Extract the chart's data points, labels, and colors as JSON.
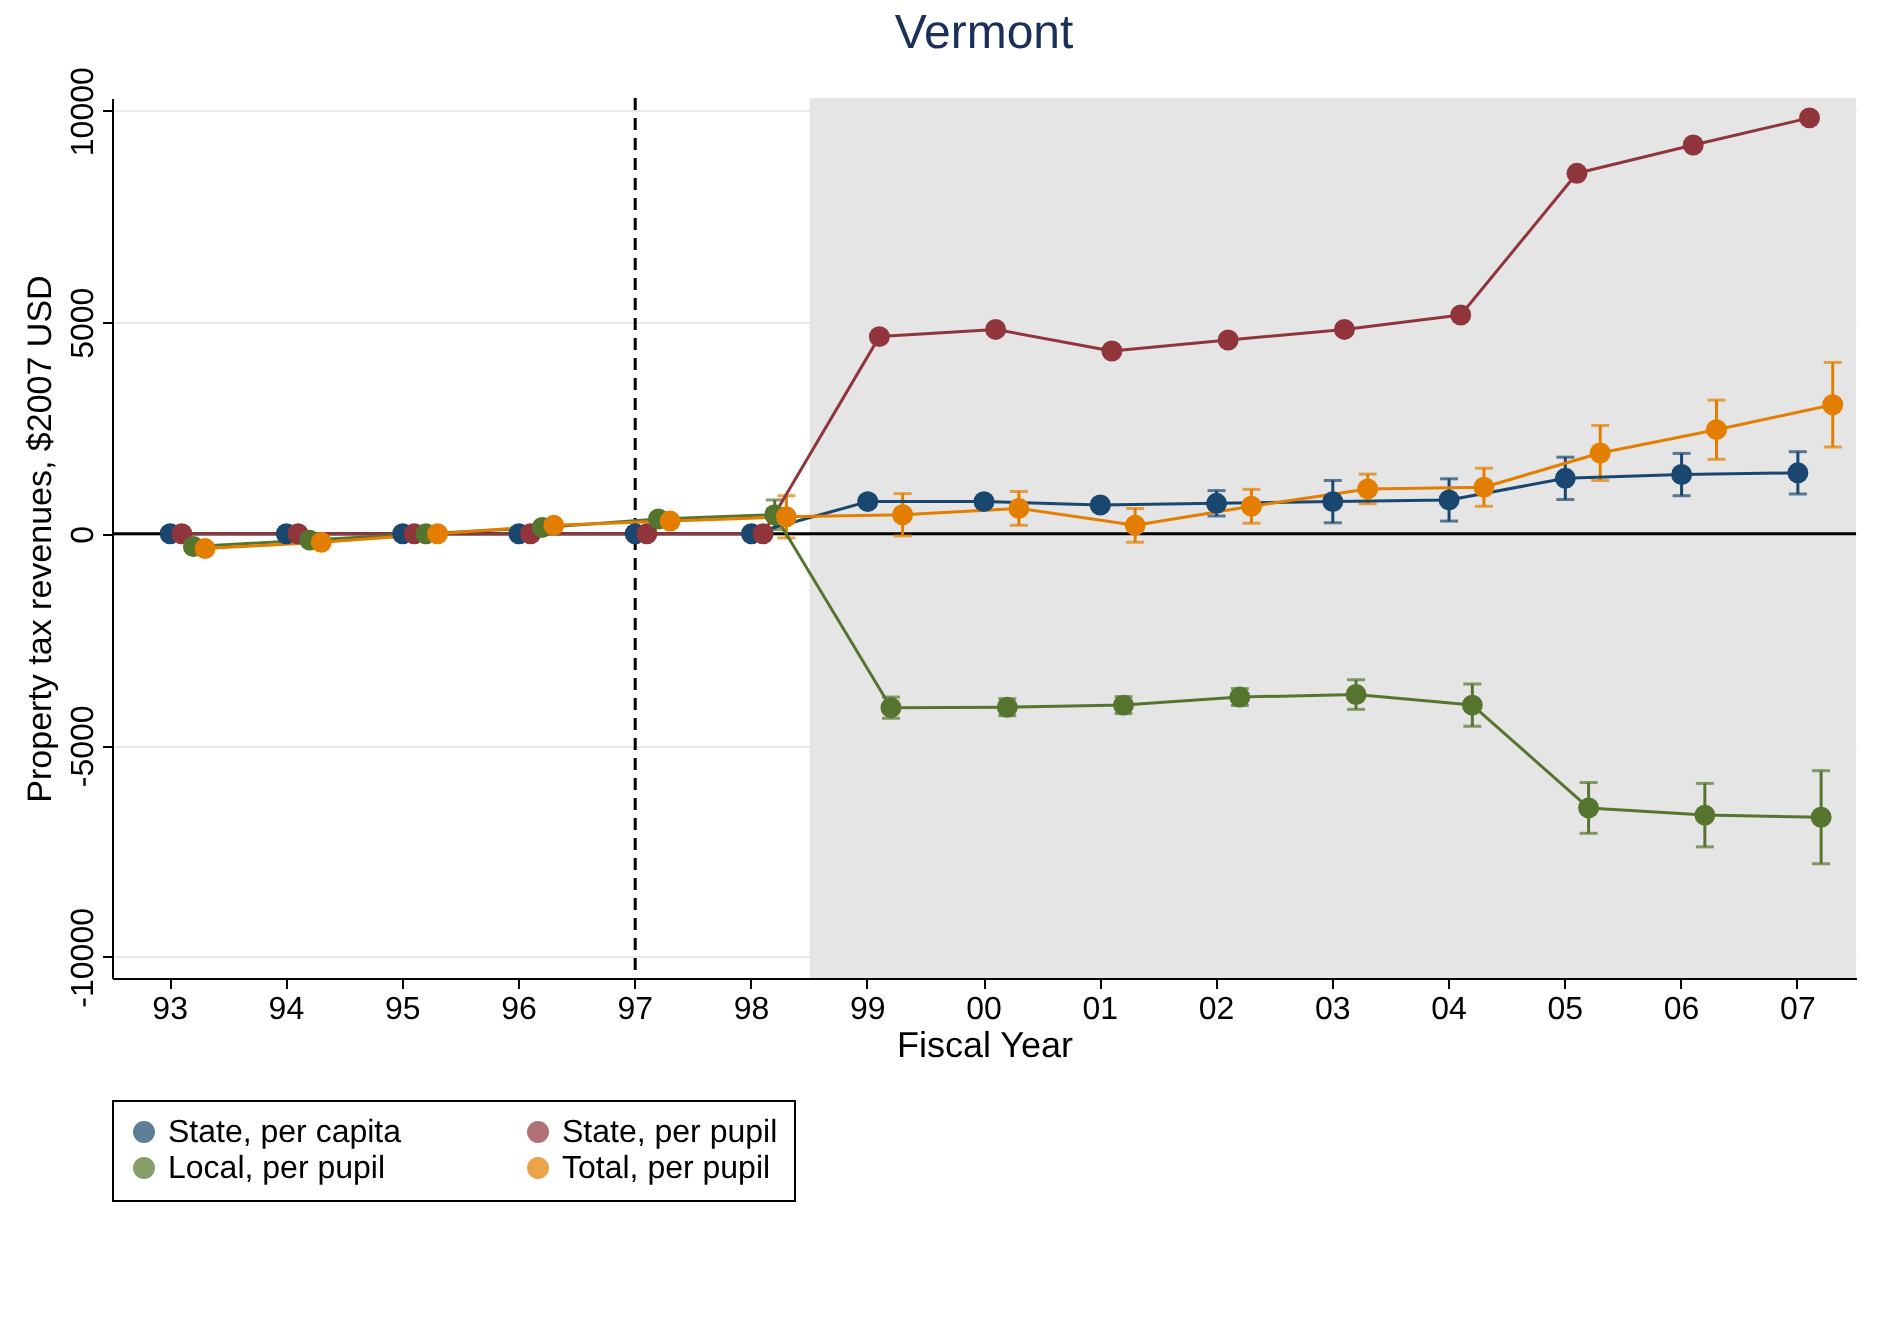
{
  "chart_data": {
    "type": "line",
    "title": "Vermont",
    "xlabel": "Fiscal Year",
    "ylabel": "Property tax revenues, $2007 USD",
    "categories": [
      "93",
      "94",
      "95",
      "96",
      "97",
      "98",
      "99",
      "00",
      "01",
      "02",
      "03",
      "04",
      "05",
      "06",
      "07"
    ],
    "ylim": [
      -10500,
      10300
    ],
    "yticks": [
      -10000,
      -5000,
      0,
      5000,
      10000
    ],
    "grid": "y",
    "legend": "bottom",
    "marker": "circle",
    "line_style": "solid",
    "series": [
      {
        "name": "State, per capita",
        "color": "#1a476f",
        "values": [
          0,
          0,
          0,
          0,
          0,
          0,
          760,
          760,
          680,
          720,
          760,
          800,
          1310,
          1400,
          1440
        ],
        "errors": [
          null,
          null,
          null,
          null,
          null,
          null,
          100,
          100,
          100,
          300,
          500,
          500,
          500,
          500,
          500
        ]
      },
      {
        "name": "State, per pupil",
        "color": "#90353b",
        "values": [
          0,
          0,
          0,
          0,
          0,
          0,
          4660,
          4830,
          4320,
          4580,
          4830,
          5170,
          8520,
          9190,
          9830
        ]
      },
      {
        "name": "Local, per pupil",
        "color": "#55752f",
        "values": [
          -300,
          -150,
          0,
          150,
          350,
          450,
          -4110,
          -4100,
          -4050,
          -3860,
          -3800,
          -4050,
          -6480,
          -6650,
          -6700
        ],
        "errors": [
          null,
          null,
          null,
          null,
          null,
          350,
          250,
          200,
          200,
          200,
          350,
          500,
          600,
          750,
          1100
        ]
      },
      {
        "name": "Total, per pupil",
        "color": "#e37e00",
        "values": [
          -350,
          -200,
          0,
          200,
          300,
          400,
          450,
          600,
          200,
          650,
          1060,
          1100,
          1910,
          2460,
          3050
        ],
        "errors": [
          null,
          null,
          null,
          null,
          null,
          500,
          500,
          400,
          400,
          400,
          350,
          450,
          650,
          700,
          1000
        ]
      }
    ],
    "ref_lines": [
      {
        "axis": "y",
        "value": 0,
        "color": "#000000",
        "line_style": "solid"
      },
      {
        "axis": "x",
        "value": "97",
        "color": "#000000",
        "line_style": "dashed"
      }
    ],
    "bands": [
      {
        "axis": "x",
        "from": "99",
        "to": "07",
        "color": "#e5e5e5"
      }
    ]
  }
}
